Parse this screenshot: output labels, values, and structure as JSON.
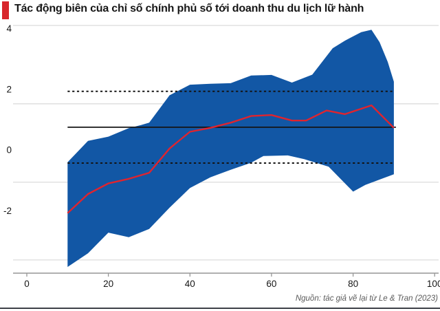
{
  "header": {
    "title": "Tác động biên của chỉ số chính phủ số tới doanh thu du lịch lữ hành"
  },
  "footer": {
    "source": "Nguồn: tác giả vẽ lại từ Le & Tran (2023)"
  },
  "colors": {
    "accent_red": "#d8262c",
    "band_blue": "#1257a5",
    "line_red": "#e0242e",
    "gridline": "#d9d9d9",
    "axis_line": "#969696",
    "reference_black": "#141414",
    "text": "#161616",
    "muted_text": "#5a5a5a",
    "bottom_border": "#3c3f46"
  },
  "chart_data": {
    "type": "area",
    "title": "Tác động biên của chỉ số chính phủ số tới doanh thu du lịch lữ hành",
    "xlabel": "",
    "ylabel": "",
    "x_ticks": [
      0,
      20,
      40,
      60,
      80,
      100
    ],
    "y_ticks": [
      4,
      2,
      0,
      -2
    ],
    "xlim": [
      -3.4,
      101
    ],
    "ylim": [
      -4.05,
      4.1
    ],
    "grid": "horizontal",
    "legend": "none",
    "gridline_values": [
      4.1,
      1.52,
      -1.06,
      -3.62
    ],
    "reference_lines": {
      "solid_mean_effect": 0.75,
      "dotted_upper": 1.93,
      "dotted_lower": -0.43,
      "x_range": [
        10,
        90
      ]
    },
    "series": [
      {
        "name": "confidence_band_upper",
        "role": "band-upper",
        "points": [
          [
            10,
            -0.4
          ],
          [
            15,
            0.3
          ],
          [
            20,
            0.44
          ],
          [
            25,
            0.72
          ],
          [
            28,
            0.82
          ],
          [
            30,
            0.9
          ],
          [
            35,
            1.8
          ],
          [
            40,
            2.15
          ],
          [
            45,
            2.18
          ],
          [
            50,
            2.2
          ],
          [
            55,
            2.45
          ],
          [
            60,
            2.47
          ],
          [
            65,
            2.22
          ],
          [
            70,
            2.48
          ],
          [
            75,
            3.35
          ],
          [
            78,
            3.6
          ],
          [
            82,
            3.88
          ],
          [
            84.5,
            3.96
          ],
          [
            86.5,
            3.55
          ],
          [
            88.5,
            2.9
          ],
          [
            90,
            2.25
          ]
        ]
      },
      {
        "name": "confidence_band_lower",
        "role": "band-lower",
        "points": [
          [
            10,
            -3.85
          ],
          [
            15,
            -3.4
          ],
          [
            20,
            -2.72
          ],
          [
            25,
            -2.87
          ],
          [
            30,
            -2.6
          ],
          [
            35,
            -1.9
          ],
          [
            40,
            -1.25
          ],
          [
            45,
            -0.9
          ],
          [
            50,
            -0.65
          ],
          [
            55,
            -0.42
          ],
          [
            58,
            -0.2
          ],
          [
            64,
            -0.18
          ],
          [
            68,
            -0.3
          ],
          [
            74,
            -0.55
          ],
          [
            80,
            -1.37
          ],
          [
            83,
            -1.15
          ],
          [
            87,
            -0.95
          ],
          [
            90,
            -0.8
          ]
        ]
      },
      {
        "name": "marginal_effect",
        "role": "line",
        "points": [
          [
            10,
            -2.08
          ],
          [
            15,
            -1.45
          ],
          [
            20,
            -1.1
          ],
          [
            25,
            -0.95
          ],
          [
            30,
            -0.75
          ],
          [
            35,
            0.05
          ],
          [
            40,
            0.6
          ],
          [
            45,
            0.73
          ],
          [
            50,
            0.9
          ],
          [
            55,
            1.12
          ],
          [
            60,
            1.15
          ],
          [
            65,
            0.97
          ],
          [
            68.5,
            0.97
          ],
          [
            73.5,
            1.3
          ],
          [
            78,
            1.18
          ],
          [
            84.5,
            1.47
          ],
          [
            90,
            0.73
          ]
        ]
      }
    ]
  }
}
